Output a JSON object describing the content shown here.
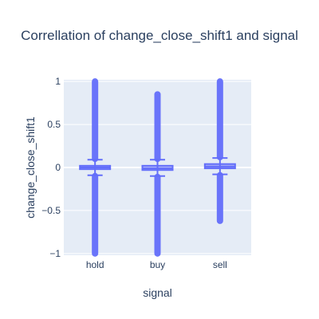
{
  "chart_data": {
    "type": "box",
    "title": "Correllation of change_close_shift1 and signal",
    "xlabel": "signal",
    "ylabel": "change_close_shift1",
    "categories": [
      "hold",
      "buy",
      "sell"
    ],
    "ylim": [
      -1.02,
      1.02
    ],
    "yticks": [
      {
        "value": 1,
        "label": "1"
      },
      {
        "value": 0.5,
        "label": "0.5"
      },
      {
        "value": 0,
        "label": "0"
      },
      {
        "value": -0.5,
        "label": "−0.5"
      },
      {
        "value": -1,
        "label": "−1"
      }
    ],
    "grid": true,
    "legend": "none",
    "series": [
      {
        "boxes": [
          {
            "category": "hold",
            "q1": -0.02,
            "median": 0.0,
            "q3": 0.02,
            "lower_whisker": -0.09,
            "upper_whisker": 0.09,
            "outliers_low": [
              -0.1,
              -1.0
            ],
            "outliers_high": [
              0.1,
              1.0
            ]
          },
          {
            "category": "buy",
            "q1": -0.03,
            "median": -0.01,
            "q3": 0.02,
            "lower_whisker": -0.1,
            "upper_whisker": 0.09,
            "outliers_low": [
              -0.11,
              -1.0
            ],
            "outliers_high": [
              0.1,
              0.85
            ]
          },
          {
            "category": "sell",
            "q1": -0.01,
            "median": 0.01,
            "q3": 0.04,
            "lower_whisker": -0.08,
            "upper_whisker": 0.11,
            "outliers_low": [
              -0.09,
              -0.62
            ],
            "outliers_high": [
              0.12,
              1.0
            ]
          }
        ]
      }
    ],
    "colors": {
      "box": "#636efa",
      "box_fill": "rgba(99,110,250,0.5)",
      "plot_bg": "#e5ecf6",
      "grid": "#ffffff"
    }
  }
}
